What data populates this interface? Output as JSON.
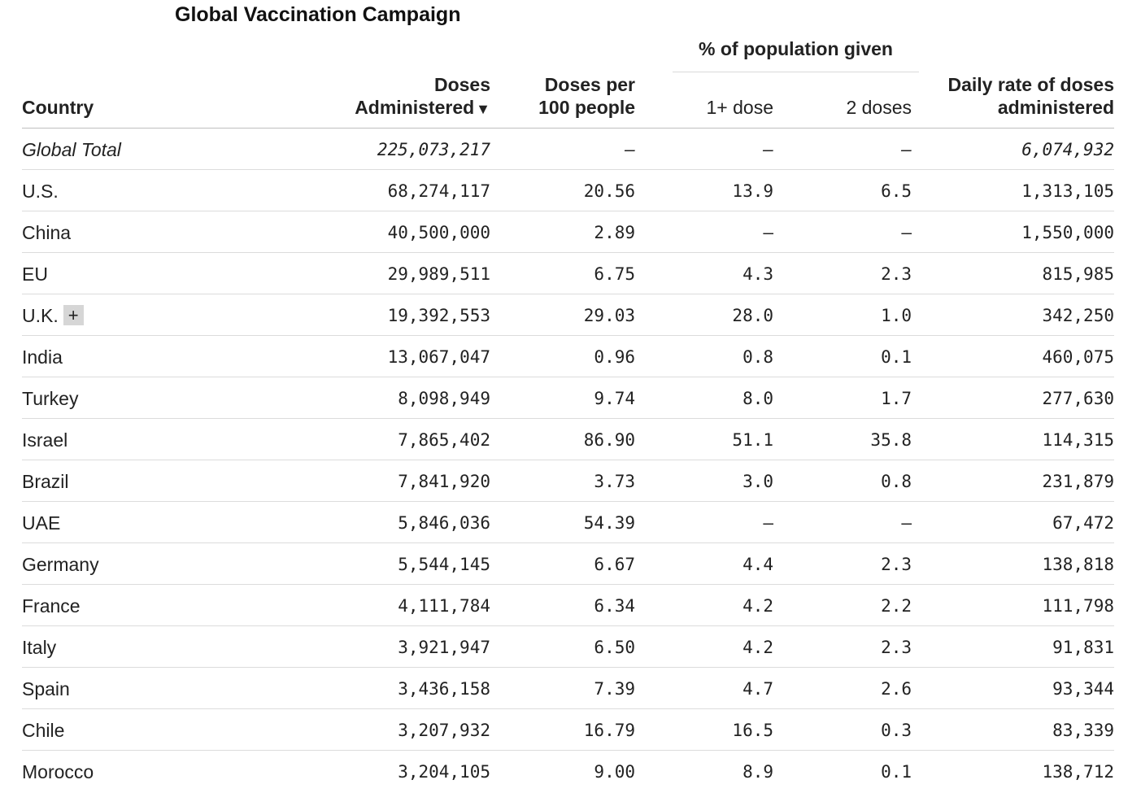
{
  "title": "Global Vaccination Campaign",
  "header": {
    "group_label": "% of population given",
    "country": "Country",
    "doses_line1": "Doses",
    "doses_line2": "Administered",
    "sort_icon": "▼",
    "per100_line1": "Doses per",
    "per100_line2": "100 people",
    "one_dose": "1+ dose",
    "two_doses": "2 doses",
    "rate_line1": "Daily rate of doses",
    "rate_line2": "administered"
  },
  "rows": [
    {
      "country": "Global Total",
      "doses": "225,073,217",
      "per100": "–",
      "one": "–",
      "two": "–",
      "rate": "6,074,932"
    },
    {
      "country": "U.S.",
      "doses": "68,274,117",
      "per100": "20.56",
      "one": "13.9",
      "two": "6.5",
      "rate": "1,313,105"
    },
    {
      "country": "China",
      "doses": "40,500,000",
      "per100": "2.89",
      "one": "–",
      "two": "–",
      "rate": "1,550,000"
    },
    {
      "country": "EU",
      "doses": "29,989,511",
      "per100": "6.75",
      "one": "4.3",
      "two": "2.3",
      "rate": "815,985"
    },
    {
      "country": "U.K.",
      "expand": "+",
      "doses": "19,392,553",
      "per100": "29.03",
      "one": "28.0",
      "two": "1.0",
      "rate": "342,250"
    },
    {
      "country": "India",
      "doses": "13,067,047",
      "per100": "0.96",
      "one": "0.8",
      "two": "0.1",
      "rate": "460,075"
    },
    {
      "country": "Turkey",
      "doses": "8,098,949",
      "per100": "9.74",
      "one": "8.0",
      "two": "1.7",
      "rate": "277,630"
    },
    {
      "country": "Israel",
      "doses": "7,865,402",
      "per100": "86.90",
      "one": "51.1",
      "two": "35.8",
      "rate": "114,315"
    },
    {
      "country": "Brazil",
      "doses": "7,841,920",
      "per100": "3.73",
      "one": "3.0",
      "two": "0.8",
      "rate": "231,879"
    },
    {
      "country": "UAE",
      "doses": "5,846,036",
      "per100": "54.39",
      "one": "–",
      "two": "–",
      "rate": "67,472"
    },
    {
      "country": "Germany",
      "doses": "5,544,145",
      "per100": "6.67",
      "one": "4.4",
      "two": "2.3",
      "rate": "138,818"
    },
    {
      "country": "France",
      "doses": "4,111,784",
      "per100": "6.34",
      "one": "4.2",
      "two": "2.2",
      "rate": "111,798"
    },
    {
      "country": "Italy",
      "doses": "3,921,947",
      "per100": "6.50",
      "one": "4.2",
      "two": "2.3",
      "rate": "91,831"
    },
    {
      "country": "Spain",
      "doses": "3,436,158",
      "per100": "7.39",
      "one": "4.7",
      "two": "2.6",
      "rate": "93,344"
    },
    {
      "country": "Chile",
      "doses": "3,207,932",
      "per100": "16.79",
      "one": "16.5",
      "two": "0.3",
      "rate": "83,339"
    },
    {
      "country": "Morocco",
      "doses": "3,204,105",
      "per100": "9.00",
      "one": "8.9",
      "two": "0.1",
      "rate": "138,712"
    }
  ]
}
